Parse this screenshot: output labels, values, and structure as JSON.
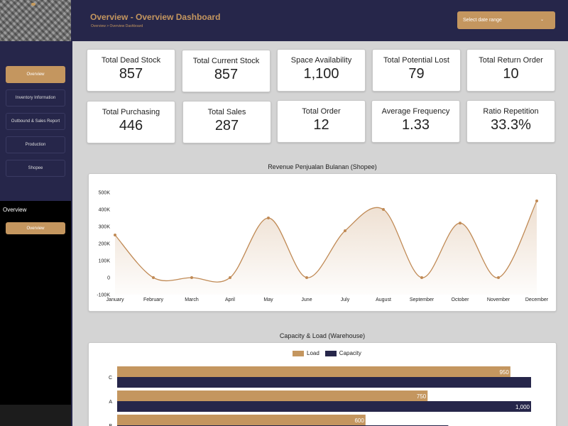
{
  "header": {
    "title": "Overview - Overview Dashboard",
    "breadcrumb": "Overview > Overview Dashboard",
    "date_placeholder": "Select date range",
    "chevron": "⌄"
  },
  "sidebar": {
    "items": [
      {
        "label": "Overview",
        "active": true
      },
      {
        "label": "Inventory Information",
        "active": false
      },
      {
        "label": "Outbound & Sales Report",
        "active": false
      },
      {
        "label": "Production",
        "active": false
      },
      {
        "label": "Shopee",
        "active": false
      }
    ],
    "section_title": "Overview",
    "section_button": "Overview"
  },
  "stats": [
    {
      "label": "Total Dead Stock",
      "value": "857"
    },
    {
      "label": "Total Current Stock",
      "value": "857"
    },
    {
      "label": "Space Availability",
      "value": "1,100"
    },
    {
      "label": "Total Potential Lost",
      "value": "79"
    },
    {
      "label": "Total Return Order",
      "value": "10"
    },
    {
      "label": "Total Purchasing",
      "value": "446"
    },
    {
      "label": "Total Sales",
      "value": "287"
    },
    {
      "label": "Total Order",
      "value": "12"
    },
    {
      "label": "Average Frequency",
      "value": "1.33"
    },
    {
      "label": "Ratio Repetition",
      "value": "33.3%"
    }
  ],
  "colors": {
    "accent": "#c4965f",
    "navy": "#26264a",
    "line": "#c08a55"
  },
  "chart_data": [
    {
      "type": "area",
      "title": "Revenue Penjualan Bulanan (Shopee)",
      "categories": [
        "January",
        "February",
        "March",
        "April",
        "May",
        "June",
        "July",
        "August",
        "September",
        "October",
        "November",
        "December"
      ],
      "values": [
        250000,
        0,
        0,
        0,
        350000,
        0,
        275000,
        400000,
        0,
        320000,
        0,
        450000
      ],
      "ylim": [
        -100000,
        500000
      ],
      "yticks": [
        "500K",
        "400K",
        "300K",
        "200K",
        "100K",
        "0",
        "-100K"
      ],
      "grid": false
    },
    {
      "type": "bar",
      "orientation": "horizontal",
      "title": "Capacity & Load (Warehouse)",
      "categories": [
        "C",
        "A",
        "B"
      ],
      "series": [
        {
          "name": "Load",
          "values": [
            950,
            750,
            600
          ],
          "labels": [
            "950",
            "750",
            "600"
          ],
          "color": "#c4965f"
        },
        {
          "name": "Capacity",
          "values": [
            1000,
            1000,
            800
          ],
          "labels": [
            "",
            "1,000",
            ""
          ],
          "color": "#26264a"
        }
      ],
      "xlim": [
        0,
        1000
      ],
      "legend": "top-center"
    }
  ]
}
